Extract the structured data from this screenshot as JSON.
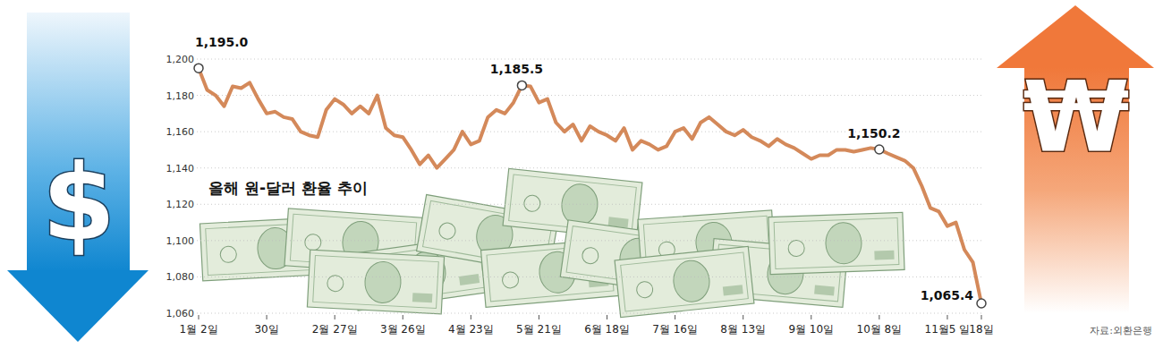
{
  "chart_data": {
    "type": "line",
    "title": "올해 원-달러 환율 추이",
    "source": "자료:외환은행",
    "symbols": [
      "$",
      "₩"
    ],
    "color": "#d4895a",
    "grid": true,
    "ylim": [
      1060,
      1200
    ],
    "yticks": [
      {
        "value": 1060,
        "label": "1,060"
      },
      {
        "value": 1080,
        "label": "1,080"
      },
      {
        "value": 1100,
        "label": "1,100"
      },
      {
        "value": 1120,
        "label": "1,120"
      },
      {
        "value": 1140,
        "label": "1,140"
      },
      {
        "value": 1160,
        "label": "1,160"
      },
      {
        "value": 1180,
        "label": "1,180"
      },
      {
        "value": 1200,
        "label": "1,200"
      }
    ],
    "categories": [
      "1월 2일",
      null,
      null,
      null,
      null,
      null,
      null,
      null,
      "30일",
      null,
      null,
      null,
      null,
      null,
      null,
      null,
      "2월 27일",
      null,
      null,
      null,
      null,
      null,
      null,
      null,
      "3월 26일",
      null,
      null,
      null,
      null,
      null,
      null,
      null,
      "4월 23일",
      null,
      null,
      null,
      null,
      null,
      null,
      null,
      "5월 21일",
      null,
      null,
      null,
      null,
      null,
      null,
      null,
      "6월 18일",
      null,
      null,
      null,
      null,
      null,
      null,
      null,
      "7월 16일",
      null,
      null,
      null,
      null,
      null,
      null,
      null,
      "8월 13일",
      null,
      null,
      null,
      null,
      null,
      null,
      null,
      "9월 10일",
      null,
      null,
      null,
      null,
      null,
      null,
      null,
      "10월 8일",
      null,
      null,
      null,
      null,
      null,
      null,
      null,
      "11월5 일",
      null,
      null,
      null,
      "18일"
    ],
    "values": [
      1195.0,
      1183,
      1180,
      1174,
      1185,
      1184,
      1187,
      1178,
      1170,
      1171,
      1168,
      1167,
      1160,
      1158,
      1157,
      1172,
      1178,
      1175,
      1170,
      1174,
      1170,
      1180,
      1162,
      1158,
      1157,
      1150,
      1142,
      1147,
      1140,
      1145,
      1150,
      1160,
      1153,
      1155,
      1168,
      1172,
      1170,
      1176,
      1185.5,
      1185,
      1176,
      1178,
      1165,
      1160,
      1164,
      1155,
      1163,
      1160,
      1158,
      1155,
      1162,
      1150,
      1155,
      1153,
      1150,
      1152,
      1160,
      1162,
      1156,
      1165,
      1168,
      1164,
      1160,
      1158,
      1161,
      1157,
      1155,
      1152,
      1156,
      1153,
      1151,
      1148,
      1145,
      1147,
      1147,
      1150,
      1150,
      1149,
      1150,
      1151,
      1150.2,
      1148,
      1146,
      1144,
      1140,
      1130,
      1118,
      1116,
      1108,
      1110,
      1095,
      1088,
      1065.4
    ],
    "value_labels": [
      "1,195.0",
      null,
      null,
      null,
      null,
      null,
      null,
      null,
      null,
      null,
      null,
      null,
      null,
      null,
      null,
      null,
      null,
      null,
      null,
      null,
      null,
      null,
      null,
      null,
      null,
      null,
      null,
      null,
      null,
      null,
      null,
      null,
      null,
      null,
      null,
      null,
      null,
      null,
      "1,185.5",
      null,
      null,
      null,
      null,
      null,
      null,
      null,
      null,
      null,
      null,
      null,
      null,
      null,
      null,
      null,
      null,
      null,
      null,
      null,
      null,
      null,
      null,
      null,
      null,
      null,
      null,
      null,
      null,
      null,
      null,
      null,
      null,
      null,
      null,
      null,
      null,
      null,
      null,
      null,
      null,
      null,
      "1,150.2",
      null,
      null,
      null,
      null,
      null,
      null,
      null,
      null,
      null,
      null,
      null,
      "1,065.4"
    ]
  }
}
